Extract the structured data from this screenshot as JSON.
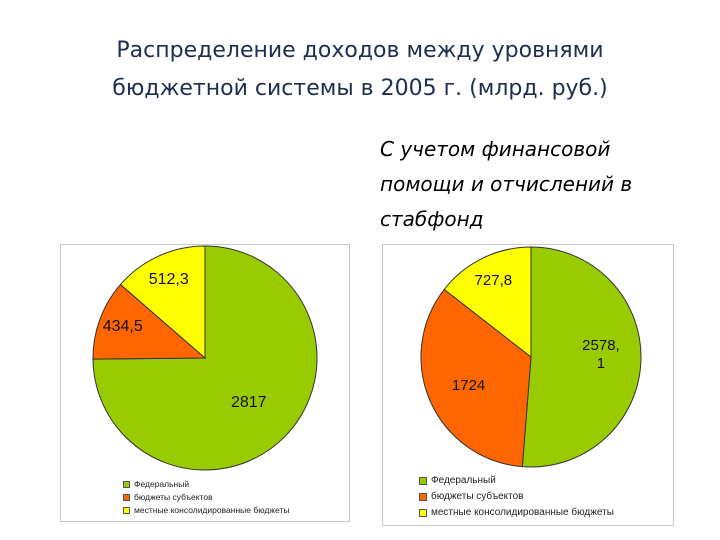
{
  "title_lines": [
    "Распределение доходов между уровнями",
    "бюджетной системы в 2005 г. (млрд. руб.)"
  ],
  "subtitle_lines": [
    "С учетом финансовой",
    "помощи и отчислений в",
    "стабфонд"
  ],
  "colors": {
    "federal": "#99cc00",
    "subjects": "#ff6600",
    "local": "#ffff00"
  },
  "chart_data": [
    {
      "type": "pie",
      "categories": [
        "Федеральный",
        "бюджеты субъектов",
        "местные консолидированные бюджеты"
      ],
      "values": [
        2817,
        434.5,
        512.3
      ],
      "data_labels": [
        "2817",
        "434,5",
        "512,3"
      ],
      "legend": [
        "Федеральный",
        "бюджеты субъектов",
        "местные консолидированные бюджеты"
      ],
      "legend_position": "bottom"
    },
    {
      "type": "pie",
      "categories": [
        "Федеральный",
        "бюджеты субъектов",
        "местные консолидированные бюджеты"
      ],
      "values": [
        2578.1,
        1724,
        727.8
      ],
      "data_labels": [
        "2578,\n1",
        "1724",
        "727,8"
      ],
      "legend": [
        "Федеральный",
        "бюджеты субъектов",
        "местные консолидированные бюджеты"
      ],
      "legend_position": "bottom"
    }
  ]
}
